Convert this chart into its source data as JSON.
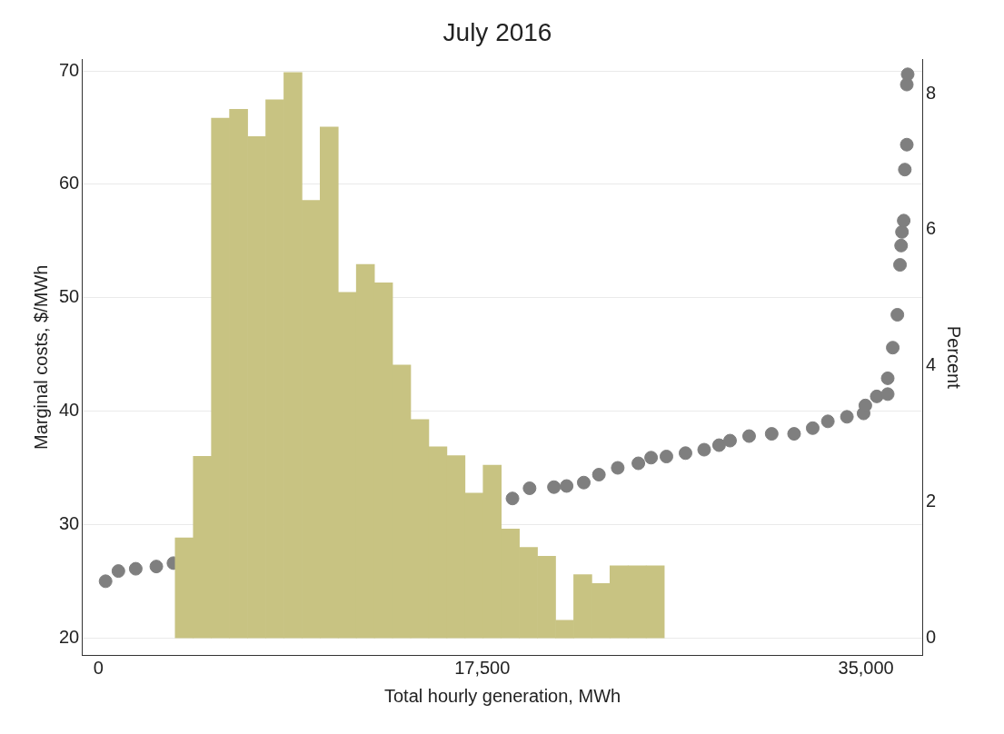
{
  "chart_data": {
    "type": "histogram",
    "title": "July 2016",
    "xlabel": "Total hourly generation, MWh",
    "ylabel": "Marginal costs, $/MWh",
    "y2label": "Percent",
    "xlim": [
      -750,
      37600
    ],
    "xticks": [
      0,
      {
        "value": 17500,
        "label": "17,500"
      },
      {
        "value": 35000,
        "label": "35,000"
      }
    ],
    "ylim": [
      18.5,
      71
    ],
    "yticks": [
      20,
      30,
      40,
      50,
      60,
      70
    ],
    "y2lim": [
      -0.25,
      8.5
    ],
    "y2ticks": [
      0,
      2,
      4,
      6,
      8
    ],
    "grid": "y",
    "legend": false,
    "marker": "circle",
    "series": [
      {
        "axis": "y2",
        "color": "#c8c382",
        "bins": [
          3500,
          4326,
          5152,
          5978,
          6804,
          7630,
          8456,
          9282,
          10108,
          10934,
          11760,
          12586,
          13412,
          14238,
          15064,
          15890,
          16716,
          17542,
          18368,
          19194,
          20020,
          20846,
          21672,
          22498,
          23324,
          24150,
          24976,
          25802
        ],
        "values": [
          1.47,
          2.67,
          7.64,
          7.77,
          7.37,
          7.91,
          8.31,
          6.43,
          7.51,
          5.08,
          5.49,
          5.22,
          4.01,
          3.21,
          2.81,
          2.68,
          2.13,
          2.54,
          1.6,
          1.33,
          1.2,
          0.26,
          0.93,
          0.8,
          1.06,
          1.06,
          1.06
        ]
      },
      {
        "type": "scatter",
        "color": "#7f7f7f",
        "x": [
          325,
          910,
          1700,
          2640,
          3420,
          18880,
          19660,
          20770,
          21350,
          22130,
          22820,
          23680,
          24620,
          25200,
          25900,
          26770,
          27620,
          28300,
          28800,
          29670,
          30700,
          31720,
          32570,
          33260,
          34130,
          34890,
          34970,
          35490,
          35990,
          35990,
          36220,
          36430,
          36550,
          36600,
          36640,
          36720,
          36770,
          36860,
          36860,
          36900
        ],
        "values": [
          25.0,
          25.9,
          26.1,
          26.3,
          26.6,
          32.3,
          33.2,
          33.3,
          33.4,
          33.7,
          34.4,
          35.0,
          35.4,
          35.9,
          36.0,
          36.3,
          36.6,
          37.0,
          37.4,
          37.8,
          38.0,
          38.0,
          38.5,
          39.1,
          39.5,
          39.8,
          40.5,
          41.3,
          41.5,
          42.9,
          45.6,
          48.5,
          52.9,
          54.6,
          55.8,
          56.8,
          61.3,
          63.5,
          68.8,
          69.7
        ]
      }
    ]
  }
}
